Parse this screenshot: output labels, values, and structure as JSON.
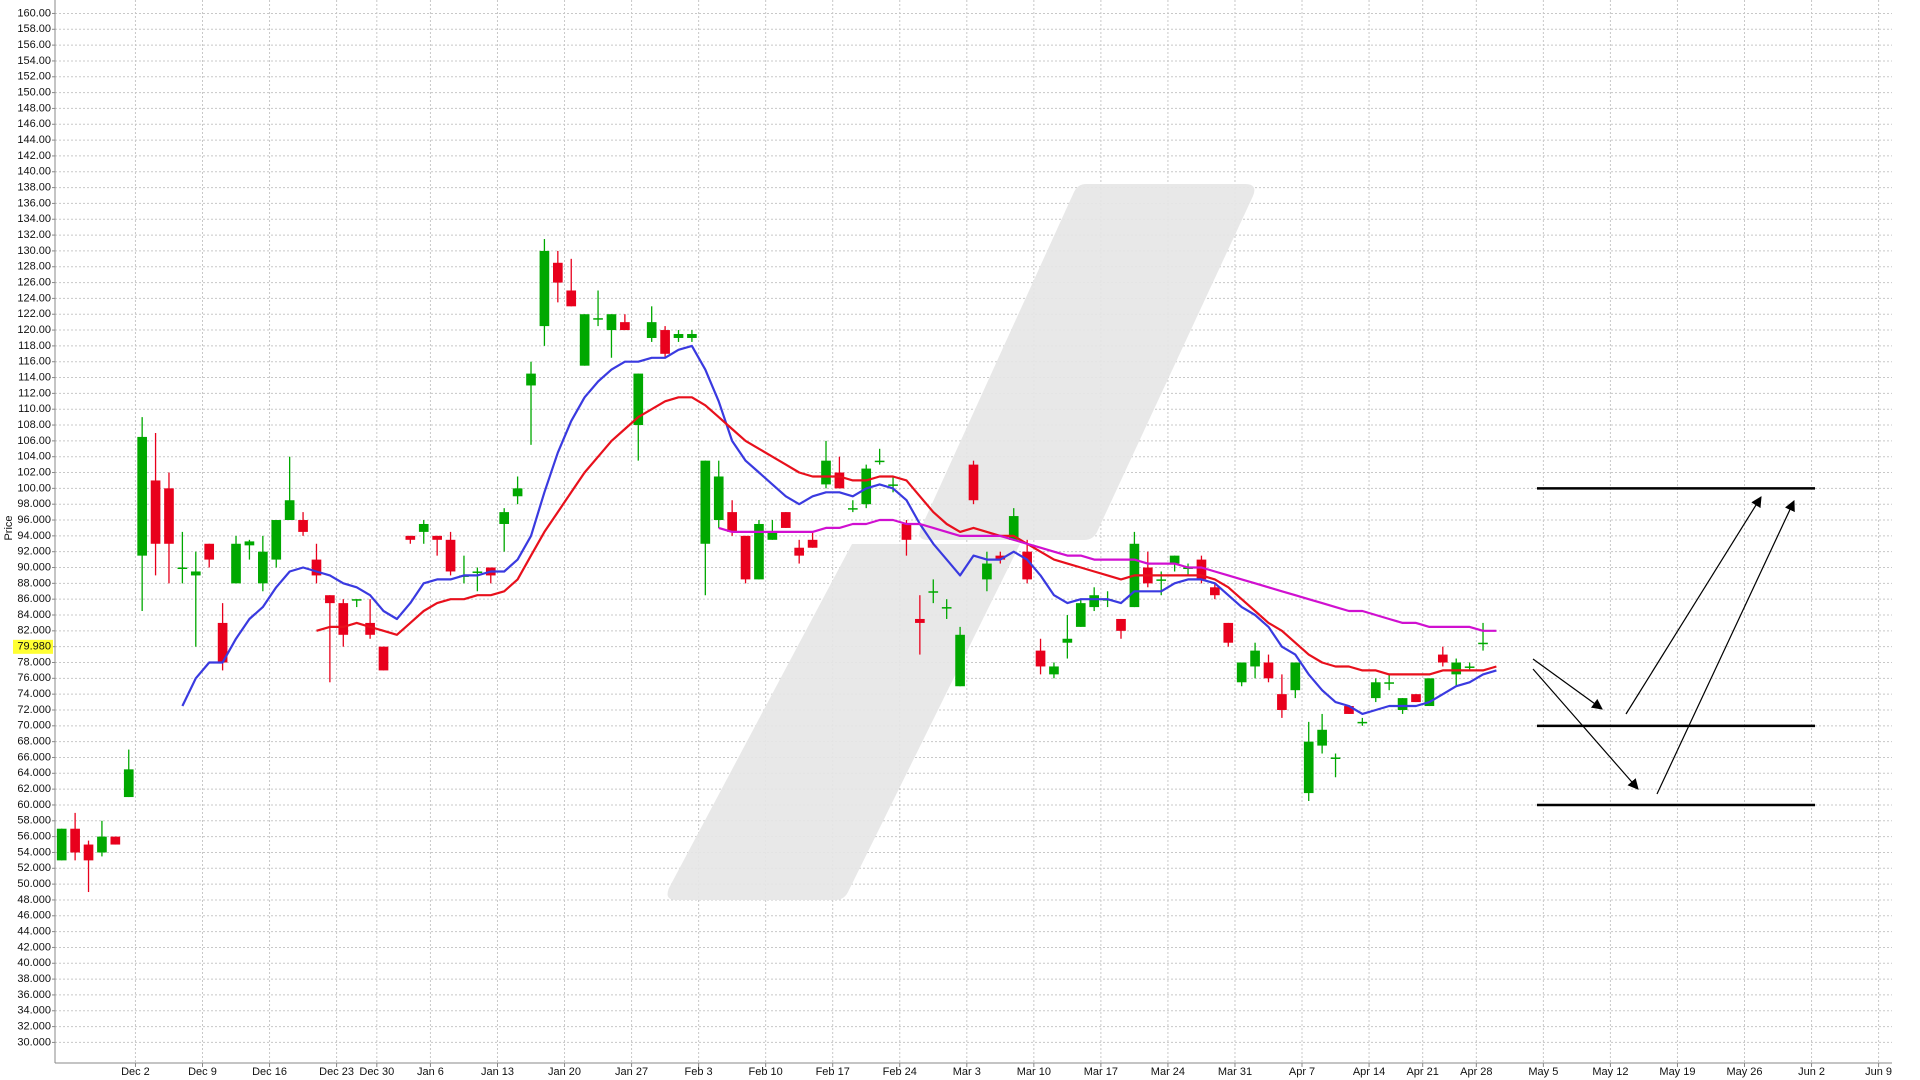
{
  "chart_data": {
    "type": "candlestick",
    "y_label": "Price",
    "ylim": [
      27.4,
      161.7
    ],
    "yticks": [
      {
        "value": 160,
        "label": "160.00"
      },
      {
        "value": 158,
        "label": "158.00"
      },
      {
        "value": 156,
        "label": "156.00"
      },
      {
        "value": 154,
        "label": "154.00"
      },
      {
        "value": 152,
        "label": "152.00"
      },
      {
        "value": 150,
        "label": "150.00"
      },
      {
        "value": 148,
        "label": "148.00"
      },
      {
        "value": 146,
        "label": "146.00"
      },
      {
        "value": 144,
        "label": "144.00"
      },
      {
        "value": 142,
        "label": "142.00"
      },
      {
        "value": 140,
        "label": "140.00"
      },
      {
        "value": 138,
        "label": "138.00"
      },
      {
        "value": 136,
        "label": "136.00"
      },
      {
        "value": 134,
        "label": "134.00"
      },
      {
        "value": 132,
        "label": "132.00"
      },
      {
        "value": 130,
        "label": "130.00"
      },
      {
        "value": 128,
        "label": "128.00"
      },
      {
        "value": 126,
        "label": "126.00"
      },
      {
        "value": 124,
        "label": "124.00"
      },
      {
        "value": 122,
        "label": "122.00"
      },
      {
        "value": 120,
        "label": "120.00"
      },
      {
        "value": 118,
        "label": "118.00"
      },
      {
        "value": 116,
        "label": "116.00"
      },
      {
        "value": 114,
        "label": "114.00"
      },
      {
        "value": 112,
        "label": "112.00"
      },
      {
        "value": 110,
        "label": "110.00"
      },
      {
        "value": 108,
        "label": "108.00"
      },
      {
        "value": 106,
        "label": "106.00"
      },
      {
        "value": 104,
        "label": "104.00"
      },
      {
        "value": 102,
        "label": "102.00"
      },
      {
        "value": 100,
        "label": "100.00"
      },
      {
        "value": 98,
        "label": "98.000"
      },
      {
        "value": 96,
        "label": "96.000"
      },
      {
        "value": 94,
        "label": "94.000"
      },
      {
        "value": 92,
        "label": "92.000"
      },
      {
        "value": 90,
        "label": "90.000"
      },
      {
        "value": 88,
        "label": "88.000"
      },
      {
        "value": 86,
        "label": "86.000"
      },
      {
        "value": 84,
        "label": "84.000"
      },
      {
        "value": 82,
        "label": "82.000"
      },
      {
        "value": 80,
        "label": "80.000"
      },
      {
        "value": 78,
        "label": "78.000"
      },
      {
        "value": 76,
        "label": "76.000"
      },
      {
        "value": 74,
        "label": "74.000"
      },
      {
        "value": 72,
        "label": "72.000"
      },
      {
        "value": 70,
        "label": "70.000"
      },
      {
        "value": 68,
        "label": "68.000"
      },
      {
        "value": 66,
        "label": "66.000"
      },
      {
        "value": 64,
        "label": "64.000"
      },
      {
        "value": 62,
        "label": "62.000"
      },
      {
        "value": 60,
        "label": "60.000"
      },
      {
        "value": 58,
        "label": "58.000"
      },
      {
        "value": 56,
        "label": "56.000"
      },
      {
        "value": 54,
        "label": "54.000"
      },
      {
        "value": 52,
        "label": "52.000"
      },
      {
        "value": 50,
        "label": "50.000"
      },
      {
        "value": 48,
        "label": "48.000"
      },
      {
        "value": 46,
        "label": "46.000"
      },
      {
        "value": 44,
        "label": "44.000"
      },
      {
        "value": 42,
        "label": "42.000"
      },
      {
        "value": 40,
        "label": "40.000"
      },
      {
        "value": 38,
        "label": "38.000"
      },
      {
        "value": 36,
        "label": "36.000"
      },
      {
        "value": 34,
        "label": "34.000"
      },
      {
        "value": 32,
        "label": "32.000"
      },
      {
        "value": 30,
        "label": "30.000"
      }
    ],
    "grid": true,
    "last_price": 79.98,
    "last_price_label": "79.980",
    "last_price_color": "#ffff33",
    "up_color": "#00a800",
    "down_color": "#e8001c",
    "categories": [
      null,
      null,
      null,
      null,
      null,
      null,
      "Dec 2",
      null,
      null,
      null,
      null,
      "Dec 9",
      null,
      null,
      null,
      null,
      "Dec 16",
      null,
      null,
      null,
      null,
      "Dec 23",
      null,
      null,
      "Dec 30",
      null,
      null,
      null,
      "Jan 6",
      null,
      null,
      null,
      null,
      "Jan 13",
      null,
      null,
      null,
      null,
      "Jan 20",
      null,
      null,
      null,
      null,
      "Jan 27",
      null,
      null,
      null,
      null,
      "Feb 3",
      null,
      null,
      null,
      null,
      "Feb 10",
      null,
      null,
      null,
      null,
      "Feb 17",
      null,
      null,
      null,
      null,
      "Feb 24",
      null,
      null,
      null,
      null,
      "Mar 3",
      null,
      null,
      null,
      null,
      "Mar 10",
      null,
      null,
      null,
      null,
      "Mar 17",
      null,
      null,
      null,
      null,
      "Mar 24",
      null,
      null,
      null,
      null,
      "Mar 31",
      null,
      null,
      null,
      null,
      "Apr 7",
      null,
      null,
      null,
      null,
      "Apr 14",
      null,
      null,
      null,
      "Apr 21",
      null,
      null,
      null,
      "Apr 28",
      null,
      null,
      null,
      null,
      "May 5",
      null,
      null,
      null,
      null,
      "May 12",
      null,
      null,
      null,
      null,
      "May 19",
      null,
      null,
      null,
      null,
      "May 26",
      null,
      null,
      null,
      null,
      "Jun 2",
      null,
      null,
      null,
      null,
      "Jun 9"
    ],
    "open": [
      53,
      57,
      55,
      54,
      56,
      61,
      91.5,
      101,
      100,
      90,
      89,
      93,
      83,
      88,
      92.8,
      88,
      91,
      96,
      96,
      91,
      86.5,
      85.5,
      86,
      83,
      80,
      null,
      94,
      94.5,
      94,
      93.5,
      89,
      89.5,
      90,
      95.5,
      99,
      113,
      120.5,
      128.5,
      125,
      115.5,
      121.5,
      120,
      121,
      108,
      119,
      120,
      119,
      119,
      93,
      96,
      97,
      94,
      88.5,
      93.5,
      97,
      92.5,
      93.5,
      100.5,
      102,
      97.5,
      98,
      103.5,
      100.5,
      95.5,
      83.5,
      87,
      85,
      75,
      103,
      88.5,
      91.5,
      93.5,
      92,
      79.5,
      76.5,
      80.5,
      82.5,
      85,
      86,
      83.5,
      85,
      90,
      88.5,
      90.5,
      90,
      91,
      87.5,
      83,
      75.5,
      77.5,
      78,
      74,
      74.5,
      61.5,
      67.5,
      66,
      72.5,
      70.5,
      73.5,
      75.5,
      72,
      74,
      72.5,
      79,
      76.5,
      77.5,
      80.5,
      null,
      null,
      null,
      null,
      null,
      null,
      null,
      null,
      null,
      null,
      null,
      null,
      null,
      null,
      null,
      null,
      null,
      null,
      null,
      null,
      null,
      null,
      null,
      null,
      null,
      null,
      null,
      null,
      null,
      null
    ],
    "high": [
      57,
      59,
      55.5,
      58,
      56,
      67,
      109,
      107,
      102,
      94.5,
      92,
      93,
      85.5,
      94,
      93.5,
      94,
      96,
      104,
      97,
      93,
      86.5,
      86,
      86,
      86,
      80,
      null,
      94,
      96,
      94,
      94.5,
      91.5,
      90,
      90,
      97.5,
      101.5,
      116,
      131.5,
      130,
      129,
      122,
      125,
      122,
      122,
      114.5,
      123,
      120.5,
      120,
      120,
      103.5,
      103.5,
      98.5,
      94,
      96,
      96,
      97,
      93.5,
      94.5,
      106,
      104,
      98.5,
      103,
      105,
      101.5,
      96,
      86.5,
      88.5,
      86,
      82.5,
      103.5,
      92,
      92,
      97.5,
      93.5,
      81,
      78,
      84,
      86,
      87.5,
      87,
      83.5,
      94.5,
      92,
      89.5,
      91.5,
      90.5,
      91.5,
      88,
      83,
      78,
      80.5,
      79,
      76.5,
      78,
      70.5,
      71.5,
      66.5,
      72.5,
      71,
      76,
      76.5,
      73.5,
      74,
      76,
      80,
      78.5,
      78,
      83,
      null,
      null,
      null,
      null,
      null,
      null,
      null,
      null,
      null,
      null,
      null,
      null,
      null,
      null,
      null,
      null,
      null,
      null,
      null,
      null,
      null,
      null,
      null,
      null,
      null,
      null,
      null,
      null,
      null,
      null
    ],
    "low": [
      53,
      53,
      49,
      53.5,
      55,
      61,
      84.5,
      89,
      88,
      88,
      80,
      90,
      77,
      88,
      91,
      87,
      90,
      96,
      94,
      88,
      75.5,
      80,
      85,
      81,
      77,
      null,
      93,
      93,
      91.5,
      89,
      88,
      87,
      88,
      92,
      98,
      105.5,
      118,
      123.5,
      123,
      115.5,
      120.5,
      116.5,
      120,
      103.5,
      118.5,
      116.5,
      118.5,
      118.5,
      86.5,
      95,
      94,
      88,
      88.5,
      93.5,
      95,
      90.5,
      92.5,
      100,
      100,
      97,
      97.5,
      103,
      99.5,
      91.5,
      79,
      85.5,
      83.5,
      75,
      98,
      87,
      90.5,
      93.5,
      88,
      76.5,
      76,
      78.5,
      82.5,
      84.5,
      85,
      81,
      85,
      87.5,
      86.5,
      89.5,
      89,
      88,
      86,
      80,
      75,
      76,
      75.5,
      71,
      73.5,
      60.5,
      66.5,
      63.5,
      71.5,
      70,
      73,
      74.5,
      71.5,
      73,
      72.5,
      77.5,
      75,
      77,
      79.5,
      null,
      null,
      null,
      null,
      null,
      null,
      null,
      null,
      null,
      null,
      null,
      null,
      null,
      null,
      null,
      null,
      null,
      null,
      null,
      null,
      null,
      null,
      null,
      null,
      null,
      null,
      null,
      null,
      null,
      null
    ],
    "close": [
      57,
      54,
      53,
      56,
      55,
      64.5,
      106.5,
      93,
      93,
      90,
      89.5,
      91,
      78,
      93,
      93.3,
      92,
      96,
      98.5,
      94.5,
      89,
      85.5,
      81.5,
      86,
      81.5,
      77,
      null,
      93.5,
      95.5,
      93.5,
      89.5,
      89,
      89.5,
      89,
      97,
      100,
      114.5,
      130,
      126,
      123,
      122,
      121.5,
      122,
      120,
      114.5,
      121,
      117,
      119.5,
      119.5,
      103.5,
      101.5,
      94.5,
      88.5,
      95.5,
      94.5,
      95,
      91.5,
      92.5,
      103.5,
      100,
      97.5,
      102.5,
      103.5,
      100.5,
      93.5,
      83,
      87,
      85,
      81.5,
      98.5,
      90.5,
      91,
      96.5,
      88.5,
      77.5,
      77.5,
      81,
      85.5,
      86.5,
      86,
      82,
      93,
      88,
      88.5,
      91.5,
      90,
      88.5,
      86.5,
      80.5,
      78,
      79.5,
      76,
      72,
      78,
      68,
      69.5,
      66,
      71.5,
      70.5,
      75.5,
      75.5,
      73.5,
      73,
      76,
      78,
      78,
      77.5,
      80.5,
      null,
      null,
      null,
      null,
      null,
      null,
      null,
      null,
      null,
      null,
      null,
      null,
      null,
      null,
      null,
      null,
      null,
      null,
      null,
      null,
      null,
      null,
      null,
      null,
      null,
      null,
      null,
      null,
      null,
      null
    ],
    "series": [
      {
        "color": "#3a3ae0",
        "values": [
          null,
          null,
          null,
          null,
          null,
          null,
          null,
          null,
          null,
          72.5,
          76,
          78,
          78,
          81,
          83.5,
          85,
          87.5,
          89.5,
          90,
          89.5,
          89,
          88,
          87.5,
          86.5,
          84.5,
          83.5,
          85.5,
          88,
          88.5,
          88.5,
          89,
          89,
          89.5,
          89.5,
          91,
          94,
          99.5,
          104.5,
          108.5,
          111.5,
          113.5,
          115,
          116,
          116,
          116.5,
          116.5,
          117.5,
          118,
          115,
          111,
          106,
          103.5,
          102,
          100.5,
          99,
          98,
          99,
          99.5,
          99.5,
          99,
          100,
          100.5,
          100,
          98.5,
          95.5,
          93,
          91,
          89,
          91.5,
          91,
          91,
          92,
          91,
          89,
          86.5,
          85.5,
          86,
          86,
          86,
          85.5,
          87,
          87,
          87,
          88,
          88.5,
          88.5,
          88,
          86.5,
          85,
          84,
          82.5,
          80,
          79,
          76.5,
          74.5,
          73,
          72.5,
          71.5,
          72,
          72.5,
          72.5,
          72.5,
          73,
          74,
          75,
          75.5,
          76.5,
          77,
          null,
          null,
          null,
          null,
          null,
          null,
          null,
          null,
          null,
          null,
          null,
          null,
          null,
          null,
          null,
          null,
          null,
          null,
          null,
          null,
          null,
          null,
          null,
          null,
          null,
          null,
          null,
          null,
          null
        ]
      },
      {
        "color": "#e8101c",
        "values": [
          null,
          null,
          null,
          null,
          null,
          null,
          null,
          null,
          null,
          null,
          null,
          null,
          null,
          null,
          null,
          null,
          null,
          null,
          null,
          82,
          82.5,
          82.5,
          83,
          82.5,
          82,
          81.5,
          83,
          84.5,
          85.5,
          86,
          86,
          86.5,
          86.5,
          87,
          88.5,
          91.5,
          94.5,
          97,
          99.5,
          102,
          104,
          106,
          107.5,
          109,
          110,
          111,
          111.5,
          111.5,
          110.5,
          109,
          107.5,
          106,
          105,
          104,
          103,
          102,
          101.5,
          101.5,
          101.5,
          101,
          101,
          101.5,
          101.5,
          101,
          99,
          97,
          95.5,
          94.5,
          95,
          94.5,
          94,
          94,
          93,
          92,
          91,
          90.5,
          90,
          89.5,
          89,
          88.5,
          89,
          89,
          89,
          89,
          89,
          89,
          88.5,
          87.5,
          86,
          84.5,
          83,
          82,
          80.5,
          79,
          78,
          77.5,
          77.5,
          77,
          77,
          76.5,
          76.5,
          76.5,
          76.5,
          77,
          77,
          77,
          77,
          77.5,
          null,
          null,
          null,
          null,
          null,
          null,
          null,
          null,
          null,
          null,
          null,
          null,
          null,
          null,
          null,
          null,
          null,
          null,
          null,
          null,
          null,
          null,
          null,
          null,
          null,
          null,
          null,
          null,
          null
        ]
      },
      {
        "color": "#d010d0",
        "values": [
          null,
          null,
          null,
          null,
          null,
          null,
          null,
          null,
          null,
          null,
          null,
          null,
          null,
          null,
          null,
          null,
          null,
          null,
          null,
          null,
          null,
          null,
          null,
          null,
          null,
          null,
          null,
          null,
          null,
          null,
          null,
          null,
          null,
          null,
          null,
          null,
          null,
          null,
          null,
          null,
          null,
          null,
          null,
          null,
          null,
          null,
          null,
          null,
          null,
          95,
          94.5,
          94.5,
          94.5,
          94.5,
          94.5,
          94.5,
          94.5,
          95,
          95,
          95.5,
          95.5,
          96,
          96,
          95.5,
          95.5,
          95,
          94.5,
          94,
          94,
          94,
          94,
          93.5,
          93,
          92.5,
          92,
          91.5,
          91.5,
          91,
          91,
          91,
          91,
          90.5,
          90.5,
          90.5,
          90,
          90,
          89.5,
          89,
          88.5,
          88,
          87.5,
          87,
          86.5,
          86,
          85.5,
          85,
          84.5,
          84.5,
          84,
          83.5,
          83,
          83,
          82.5,
          82.5,
          82.5,
          82.5,
          82,
          82,
          null,
          null,
          null,
          null,
          null,
          null,
          null,
          null,
          null,
          null,
          null,
          null,
          null,
          null,
          null,
          null,
          null,
          null,
          null,
          null,
          null,
          null,
          null,
          null,
          null,
          null,
          null,
          null,
          null
        ]
      }
    ],
    "levels": [
      100,
      70,
      60
    ]
  }
}
